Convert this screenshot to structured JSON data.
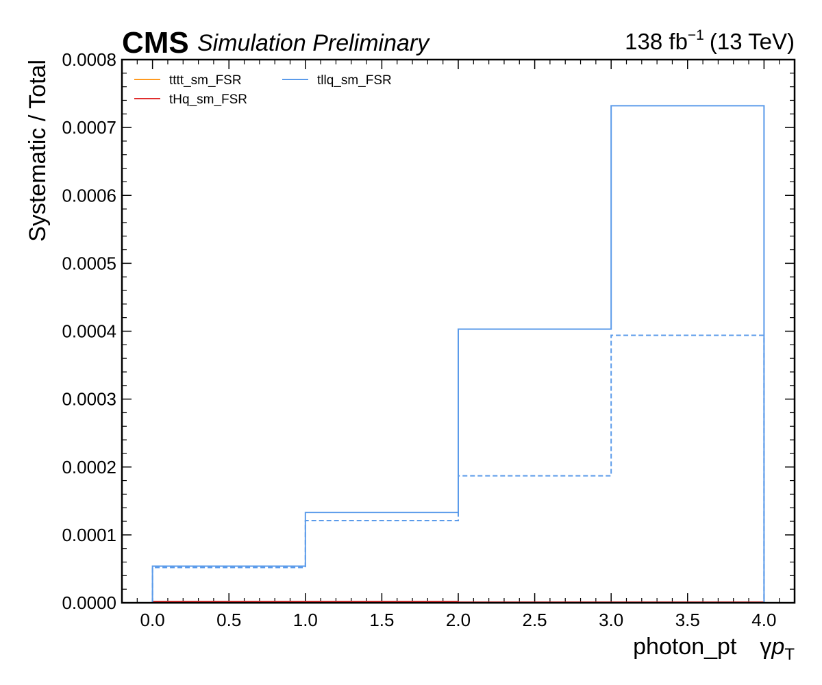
{
  "header": {
    "experiment": "CMS",
    "status": "Simulation Preliminary",
    "lumi_value": "138 fb",
    "lumi_exp": "−1",
    "energy": "(13 TeV)"
  },
  "chart_data": {
    "type": "line",
    "style": "step",
    "xlabel": "photon_pt   γp_T",
    "xlabel_main": "photon_pt",
    "xlabel_gamma": "γ",
    "xlabel_p": "p",
    "xlabel_sub": "T",
    "ylabel": "Systematic / Total",
    "xlim": [
      -0.2,
      4.2
    ],
    "ylim": [
      0,
      0.0008
    ],
    "x_ticks": [
      "0.0",
      "0.5",
      "1.0",
      "1.5",
      "2.0",
      "2.5",
      "3.0",
      "3.5",
      "4.0"
    ],
    "y_ticks": [
      "0.0000",
      "0.0001",
      "0.0002",
      "0.0003",
      "0.0004",
      "0.0005",
      "0.0006",
      "0.0007",
      "0.0008"
    ],
    "bin_edges": [
      0,
      1,
      2,
      3,
      4
    ],
    "grid": false,
    "legend_position": "top-left",
    "series": [
      {
        "name": "tttt_sm_FSR",
        "color": "#ff9a1f",
        "solid": [
          1e-06,
          1e-06,
          5e-07,
          5e-07
        ],
        "dashed": [
          1e-06,
          1e-06,
          5e-07,
          5e-07
        ]
      },
      {
        "name": "tHq_sm_FSR",
        "color": "#e02e2e",
        "solid": [
          2e-06,
          2e-06,
          1e-06,
          1e-06
        ],
        "dashed": [
          2e-06,
          2e-06,
          1e-06,
          1e-06
        ]
      },
      {
        "name": "tllq_sm_FSR",
        "color": "#5b9bea",
        "solid": [
          5.4e-05,
          0.000133,
          0.000403,
          0.000732
        ],
        "dashed": [
          5.2e-05,
          0.000121,
          0.000187,
          0.000394
        ]
      }
    ]
  }
}
